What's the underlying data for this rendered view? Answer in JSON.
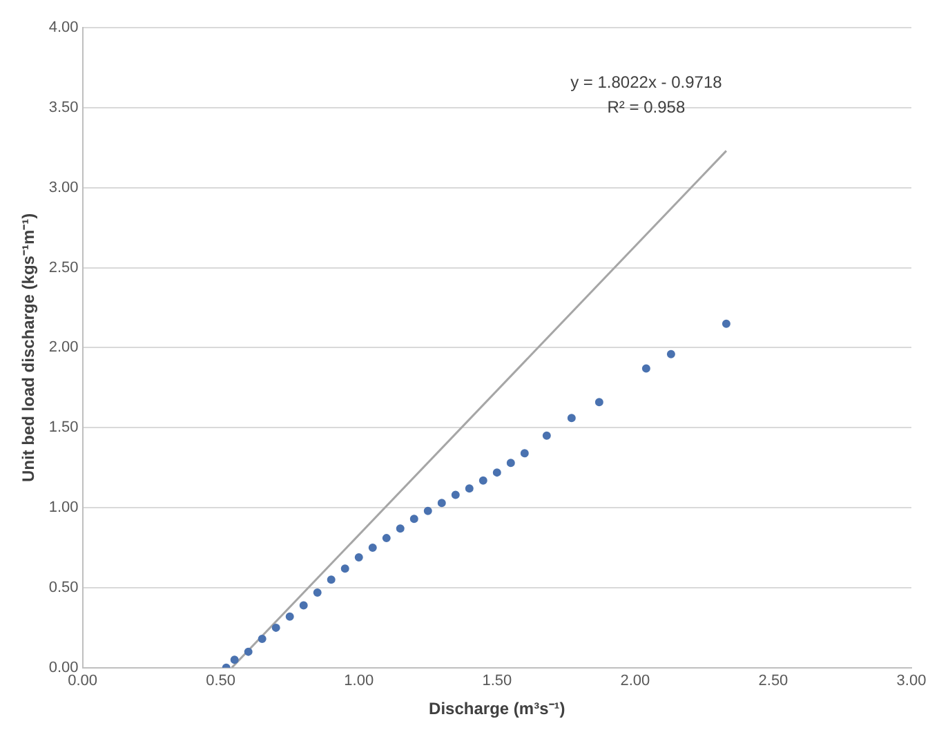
{
  "chart_data": {
    "type": "scatter",
    "xlabel": "Discharge (m³s⁻¹)",
    "ylabel": "Unit bed load discharge (kgs⁻¹m⁻¹)",
    "xlim": [
      0,
      3
    ],
    "xticks": [
      {
        "value": 0,
        "label": "0.00"
      },
      {
        "value": 0.5,
        "label": "0.50"
      },
      {
        "value": 1,
        "label": "1.00"
      },
      {
        "value": 1.5,
        "label": "1.50"
      },
      {
        "value": 2,
        "label": "2.00"
      },
      {
        "value": 2.5,
        "label": "2.50"
      },
      {
        "value": 3,
        "label": "3.00"
      }
    ],
    "ylim": [
      0,
      4
    ],
    "yticks": [
      {
        "value": 0,
        "label": "0.00"
      },
      {
        "value": 0.5,
        "label": "0.50"
      },
      {
        "value": 1,
        "label": "1.00"
      },
      {
        "value": 1.5,
        "label": "1.50"
      },
      {
        "value": 2,
        "label": "2.00"
      },
      {
        "value": 2.5,
        "label": "2.50"
      },
      {
        "value": 3,
        "label": "3.00"
      },
      {
        "value": 3.5,
        "label": "3.50"
      },
      {
        "value": 4,
        "label": "4.00"
      }
    ],
    "grid": "y",
    "marker": "circle",
    "series": [
      {
        "color": "#4a72b0",
        "x": [
          0.52,
          0.55,
          0.6,
          0.65,
          0.7,
          0.75,
          0.8,
          0.85,
          0.9,
          0.95,
          1.0,
          1.05,
          1.1,
          1.15,
          1.2,
          1.25,
          1.3,
          1.35,
          1.4,
          1.45,
          1.5,
          1.55,
          1.6,
          1.68,
          1.77,
          1.87,
          2.04,
          2.13,
          2.33
        ],
        "values": [
          0,
          0.05,
          0.1,
          0.18,
          0.25,
          0.32,
          0.39,
          0.47,
          0.55,
          0.62,
          0.69,
          0.75,
          0.81,
          0.87,
          0.93,
          0.98,
          1.03,
          1.08,
          1.12,
          1.17,
          1.22,
          1.28,
          1.34,
          1.45,
          1.56,
          1.66,
          1.87,
          1.96,
          2.15
        ]
      },
      {
        "type": "line",
        "color": "#a6a6a6",
        "marker": "none",
        "x": [
          0.54,
          2.33
        ],
        "values": [
          0,
          3.23
        ]
      }
    ],
    "annotations": [
      "y = 1.8022x - 0.9718",
      "R² = 0.958"
    ]
  }
}
